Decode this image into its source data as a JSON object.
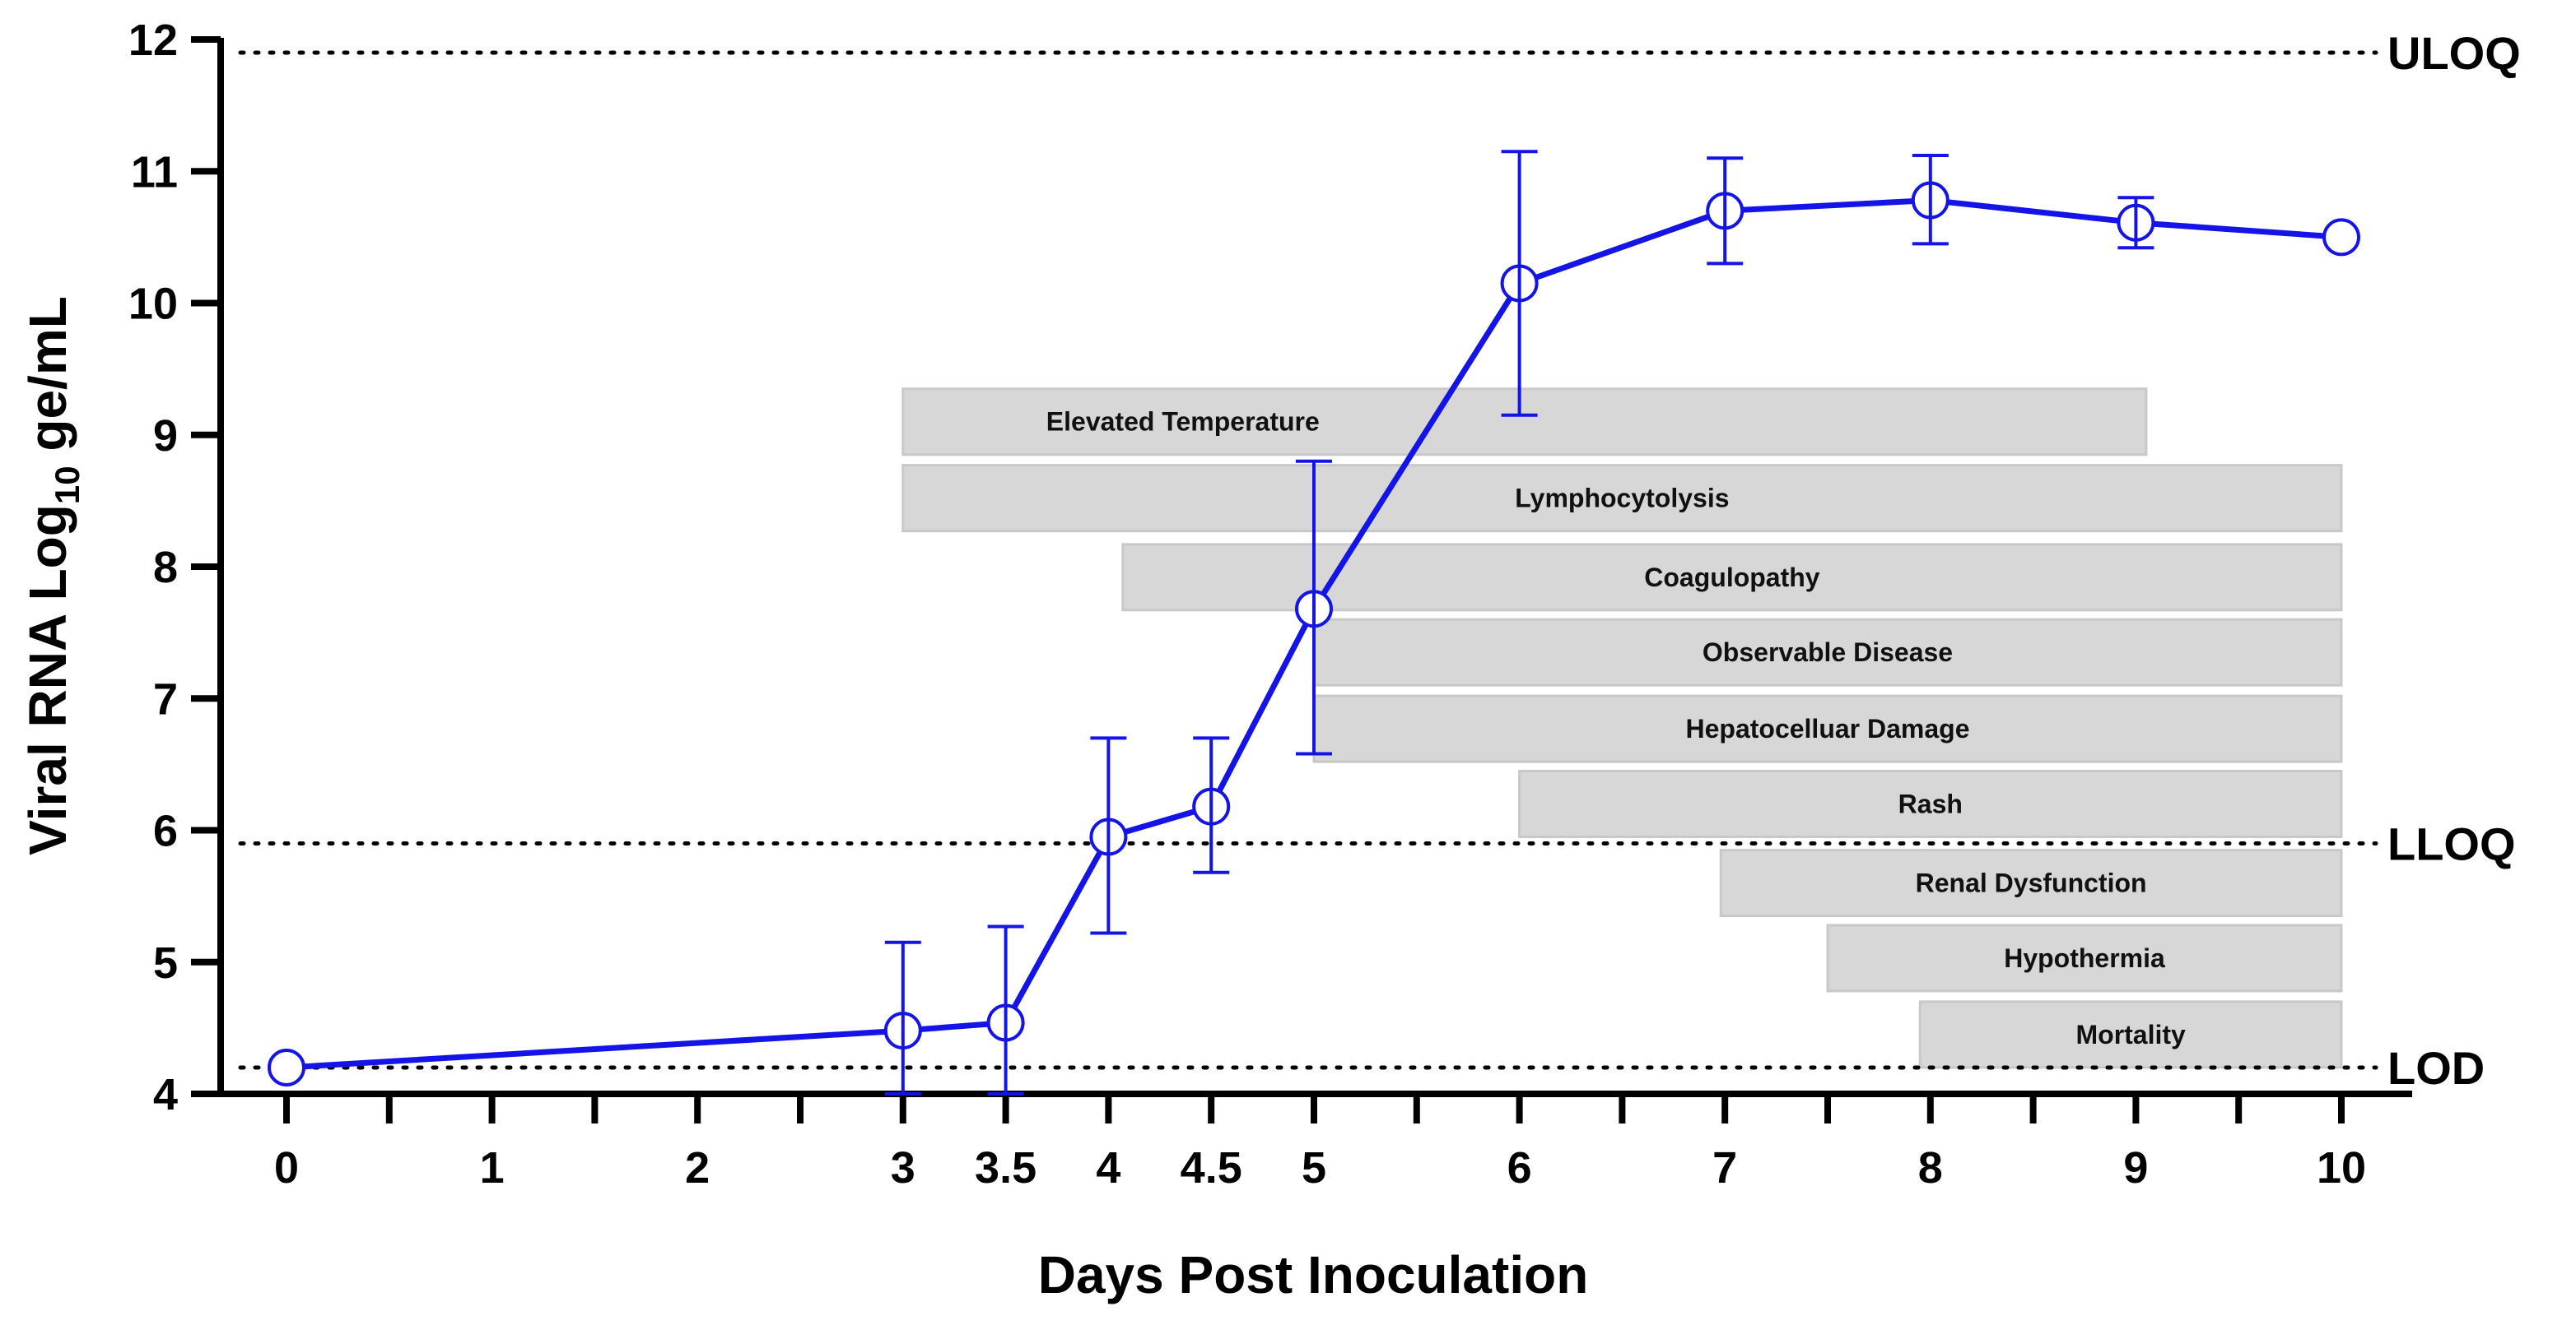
{
  "chart_data": {
    "type": "line",
    "title": "",
    "xlabel": "Days Post Inoculation",
    "ylabel_main": "Viral  RNA Log",
    "ylabel_sub": "10",
    "ylabel_tail": " ge/mL",
    "xlim": [
      0,
      10
    ],
    "ylim": [
      4,
      12
    ],
    "x_ticks": [
      0,
      1,
      2,
      3,
      3.5,
      4,
      4.5,
      5,
      6,
      7,
      8,
      9,
      10
    ],
    "x_tick_labels": [
      "0",
      "1",
      "2",
      "3",
      "3.5",
      "4",
      "4.5",
      "5",
      "6",
      "7",
      "8",
      "9",
      "10"
    ],
    "x_minor_ticks": [
      0.5,
      1.5,
      2.5,
      5.5,
      6.5,
      7.5,
      8.5,
      9.5
    ],
    "y_ticks": [
      4,
      5,
      6,
      7,
      8,
      9,
      10,
      11,
      12
    ],
    "y_tick_labels": [
      "4",
      "5",
      "6",
      "7",
      "8",
      "9",
      "10",
      "11",
      "12"
    ],
    "series": [
      {
        "name": "Viral RNA",
        "color": "#1414e6",
        "points": [
          {
            "x": 0,
            "y": 4.2,
            "lo": 4.2,
            "hi": 4.2
          },
          {
            "x": 3,
            "y": 4.48,
            "lo": 4.0,
            "hi": 5.15
          },
          {
            "x": 3.5,
            "y": 4.54,
            "lo": 4.0,
            "hi": 5.27
          },
          {
            "x": 4,
            "y": 5.95,
            "lo": 5.22,
            "hi": 6.7
          },
          {
            "x": 4.5,
            "y": 6.18,
            "lo": 5.68,
            "hi": 6.7
          },
          {
            "x": 5,
            "y": 7.68,
            "lo": 6.58,
            "hi": 8.8
          },
          {
            "x": 6,
            "y": 10.15,
            "lo": 9.15,
            "hi": 11.15
          },
          {
            "x": 7,
            "y": 10.7,
            "lo": 10.3,
            "hi": 11.1
          },
          {
            "x": 8,
            "y": 10.78,
            "lo": 10.45,
            "hi": 11.12
          },
          {
            "x": 9,
            "y": 10.61,
            "lo": 10.42,
            "hi": 10.8
          },
          {
            "x": 10,
            "y": 10.5,
            "lo": 10.5,
            "hi": 10.5
          }
        ]
      }
    ],
    "reference_lines": [
      {
        "label": "ULOQ",
        "y": 11.9
      },
      {
        "label": "LLOQ",
        "y": 5.9
      },
      {
        "label": "LOD",
        "y": 4.2
      }
    ],
    "annotations": [
      {
        "label": "Elevated Temperature",
        "start": 3.0,
        "end": 9.05,
        "y_center": 9.1,
        "align": "start"
      },
      {
        "label": "Lymphocytolysis",
        "start": 3.0,
        "end": 10.0,
        "y_center": 8.52,
        "align": "center"
      },
      {
        "label": "Coagulopathy",
        "start": 4.07,
        "end": 10.0,
        "y_center": 7.92,
        "align": "center"
      },
      {
        "label": "Observable  Disease",
        "start": 5.0,
        "end": 10.0,
        "y_center": 7.35,
        "align": "center"
      },
      {
        "label": "Hepatocelluar Damage",
        "start": 5.0,
        "end": 10.0,
        "y_center": 6.77,
        "align": "center"
      },
      {
        "label": "Rash",
        "start": 6.0,
        "end": 10.0,
        "y_center": 6.2,
        "align": "center"
      },
      {
        "label": "Renal  Dysfunction",
        "start": 6.98,
        "end": 10.0,
        "y_center": 5.6,
        "align": "center"
      },
      {
        "label": "Hypothermia",
        "start": 7.5,
        "end": 10.0,
        "y_center": 5.03,
        "align": "center"
      },
      {
        "label": "Mortality",
        "start": 7.95,
        "end": 10.0,
        "y_center": 4.45,
        "align": "center"
      }
    ],
    "band_color": "#d7d7d7",
    "grid": false,
    "legend": "none"
  }
}
